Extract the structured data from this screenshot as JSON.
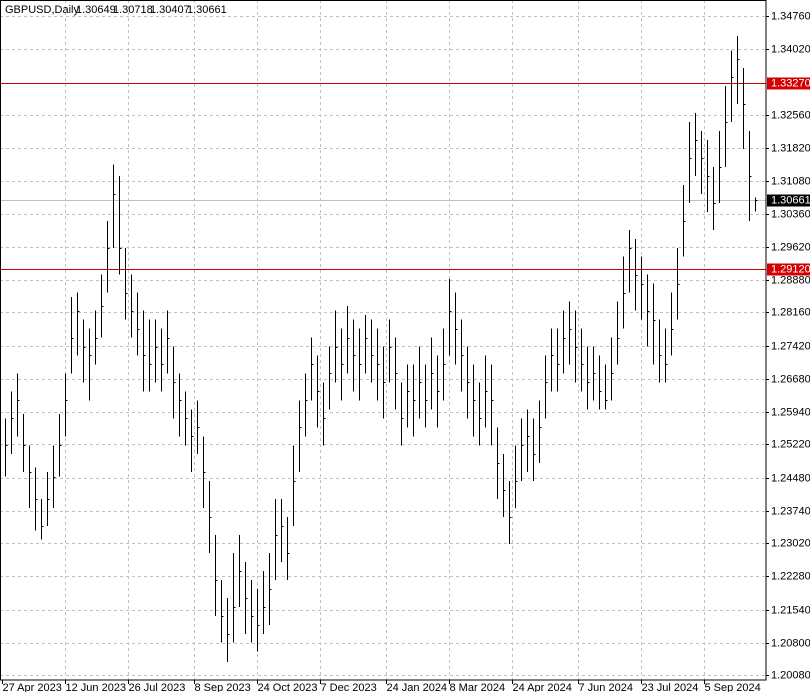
{
  "chart_data": {
    "type": "ohlc",
    "symbol": "GBPUSD,Daily",
    "ohlc": [
      1.30649,
      1.30718,
      1.30407,
      1.30661
    ],
    "color": "#000000",
    "high": [
      1.258,
      1.264,
      1.268,
      1.259,
      1.252,
      1.247,
      1.24,
      1.246,
      1.252,
      1.259,
      1.268,
      1.285,
      1.286,
      1.28,
      1.278,
      1.282,
      1.29,
      1.302,
      1.3145,
      1.312,
      1.296,
      1.29,
      1.286,
      1.282,
      1.28,
      1.28,
      1.278,
      1.282,
      1.274,
      1.268,
      1.264,
      1.26,
      1.262,
      1.254,
      1.244,
      1.232,
      1.222,
      1.218,
      1.228,
      1.232,
      1.226,
      1.222,
      1.22,
      1.224,
      1.228,
      1.24,
      1.24,
      1.236,
      1.252,
      1.262,
      1.268,
      1.276,
      1.272,
      1.266,
      1.274,
      1.282,
      1.278,
      1.283,
      1.28,
      1.278,
      1.281,
      1.28,
      1.278,
      1.274,
      1.28,
      1.276,
      1.266,
      1.27,
      1.27,
      1.274,
      1.27,
      1.276,
      1.272,
      1.278,
      1.289,
      1.286,
      1.28,
      1.274,
      1.27,
      1.266,
      1.272,
      1.27,
      1.256,
      1.25,
      1.244,
      1.252,
      1.258,
      1.26,
      1.258,
      1.262,
      1.272,
      1.278,
      1.278,
      1.282,
      1.284,
      1.282,
      1.278,
      1.274,
      1.274,
      1.272,
      1.27,
      1.276,
      1.284,
      1.294,
      1.3,
      1.298,
      1.294,
      1.29,
      1.288,
      1.28,
      1.278,
      1.286,
      1.296,
      1.31,
      1.324,
      1.326,
      1.322,
      1.32,
      1.314,
      1.322,
      1.332,
      1.34,
      1.3432,
      1.336,
      1.322,
      1.30718
    ],
    "low": [
      1.245,
      1.25,
      1.254,
      1.246,
      1.238,
      1.233,
      1.231,
      1.234,
      1.238,
      1.245,
      1.254,
      1.268,
      1.272,
      1.266,
      1.262,
      1.27,
      1.276,
      1.286,
      1.296,
      1.29,
      1.28,
      1.276,
      1.272,
      1.264,
      1.264,
      1.266,
      1.264,
      1.268,
      1.258,
      1.254,
      1.252,
      1.246,
      1.25,
      1.238,
      1.228,
      1.214,
      1.208,
      1.2037,
      1.208,
      1.216,
      1.21,
      1.208,
      1.206,
      1.21,
      1.212,
      1.222,
      1.226,
      1.222,
      1.234,
      1.246,
      1.254,
      1.262,
      1.256,
      1.252,
      1.26,
      1.266,
      1.262,
      1.268,
      1.264,
      1.262,
      1.268,
      1.266,
      1.262,
      1.258,
      1.266,
      1.26,
      1.252,
      1.256,
      1.254,
      1.258,
      1.256,
      1.26,
      1.256,
      1.262,
      1.272,
      1.27,
      1.264,
      1.258,
      1.254,
      1.252,
      1.256,
      1.252,
      1.24,
      1.236,
      1.23,
      1.238,
      1.244,
      1.246,
      1.244,
      1.248,
      1.258,
      1.264,
      1.264,
      1.268,
      1.27,
      1.266,
      1.264,
      1.26,
      1.262,
      1.26,
      1.26,
      1.262,
      1.27,
      1.278,
      1.286,
      1.282,
      1.28,
      1.274,
      1.27,
      1.266,
      1.266,
      1.272,
      1.28,
      1.294,
      1.306,
      1.312,
      1.308,
      1.304,
      1.3,
      1.306,
      1.314,
      1.324,
      1.328,
      1.318,
      1.302,
      1.30407
    ],
    "close": [
      1.252,
      1.258,
      1.262,
      1.252,
      1.246,
      1.24,
      1.234,
      1.24,
      1.245,
      1.252,
      1.262,
      1.276,
      1.282,
      1.274,
      1.272,
      1.276,
      1.283,
      1.296,
      1.308,
      1.296,
      1.286,
      1.282,
      1.278,
      1.272,
      1.27,
      1.274,
      1.27,
      1.276,
      1.266,
      1.262,
      1.258,
      1.254,
      1.256,
      1.246,
      1.236,
      1.222,
      1.214,
      1.21,
      1.216,
      1.224,
      1.218,
      1.214,
      1.212,
      1.216,
      1.22,
      1.232,
      1.234,
      1.228,
      1.244,
      1.256,
      1.262,
      1.27,
      1.264,
      1.258,
      1.268,
      1.274,
      1.27,
      1.276,
      1.272,
      1.27,
      1.276,
      1.272,
      1.27,
      1.266,
      1.274,
      1.268,
      1.258,
      1.264,
      1.262,
      1.266,
      1.262,
      1.268,
      1.264,
      1.27,
      1.282,
      1.278,
      1.272,
      1.266,
      1.262,
      1.258,
      1.264,
      1.262,
      1.248,
      1.242,
      1.236,
      1.244,
      1.252,
      1.254,
      1.25,
      1.256,
      1.266,
      1.272,
      1.27,
      1.276,
      1.278,
      1.274,
      1.27,
      1.266,
      1.268,
      1.264,
      1.262,
      1.268,
      1.276,
      1.286,
      1.296,
      1.29,
      1.288,
      1.282,
      1.28,
      1.272,
      1.27,
      1.278,
      1.288,
      1.302,
      1.316,
      1.32,
      1.316,
      1.312,
      1.306,
      1.314,
      1.324,
      1.334,
      1.338,
      1.328,
      1.312,
      1.30661
    ],
    "ylim": [
      1.1997,
      1.3512
    ],
    "yticks": [
      {
        "value": 1.3476,
        "label": "1.34760"
      },
      {
        "value": 1.3402,
        "label": "1.34020"
      },
      {
        "value": 1.3256,
        "label": "1.32560"
      },
      {
        "value": 1.3182,
        "label": "1.31820"
      },
      {
        "value": 1.3108,
        "label": "1.31080"
      },
      {
        "value": 1.3036,
        "label": "1.30360"
      },
      {
        "value": 1.2962,
        "label": "1.29620"
      },
      {
        "value": 1.2888,
        "label": "1.28880"
      },
      {
        "value": 1.2816,
        "label": "1.28160"
      },
      {
        "value": 1.2742,
        "label": "1.27420"
      },
      {
        "value": 1.2668,
        "label": "1.26680"
      },
      {
        "value": 1.2594,
        "label": "1.25940"
      },
      {
        "value": 1.2522,
        "label": "1.25220"
      },
      {
        "value": 1.2448,
        "label": "1.24480"
      },
      {
        "value": 1.2374,
        "label": "1.23740"
      },
      {
        "value": 1.2302,
        "label": "1.23020"
      },
      {
        "value": 1.2228,
        "label": "1.22280"
      },
      {
        "value": 1.2154,
        "label": "1.21540"
      },
      {
        "value": 1.208,
        "label": "1.20800"
      },
      {
        "value": 1.2008,
        "label": "1.20080"
      }
    ],
    "xticks": [
      {
        "value": 0,
        "label": "27 Apr 2023"
      },
      {
        "value": 10.5,
        "label": "12 Jun 2023"
      },
      {
        "value": 21,
        "label": "26 Jul 2023"
      },
      {
        "value": 32,
        "label": "8 Sep 2023"
      },
      {
        "value": 42.5,
        "label": "24 Oct 2023"
      },
      {
        "value": 53,
        "label": "7 Dec 2023"
      },
      {
        "value": 64,
        "label": "24 Jan 2024"
      },
      {
        "value": 74.5,
        "label": "8 Mar 2024"
      },
      {
        "value": 85,
        "label": "24 Apr 2024"
      },
      {
        "value": 96,
        "label": "7 Jun 2024"
      },
      {
        "value": 106.5,
        "label": "23 Jul 2024"
      },
      {
        "value": 117,
        "label": "5 Sep 2024"
      }
    ],
    "hlines": [
      {
        "value": 1.3327,
        "label": "1.33270",
        "color": "#d40000"
      },
      {
        "value": 1.2912,
        "label": "1.29120",
        "color": "#d40000"
      }
    ],
    "last": 1.30661,
    "grid": true
  }
}
